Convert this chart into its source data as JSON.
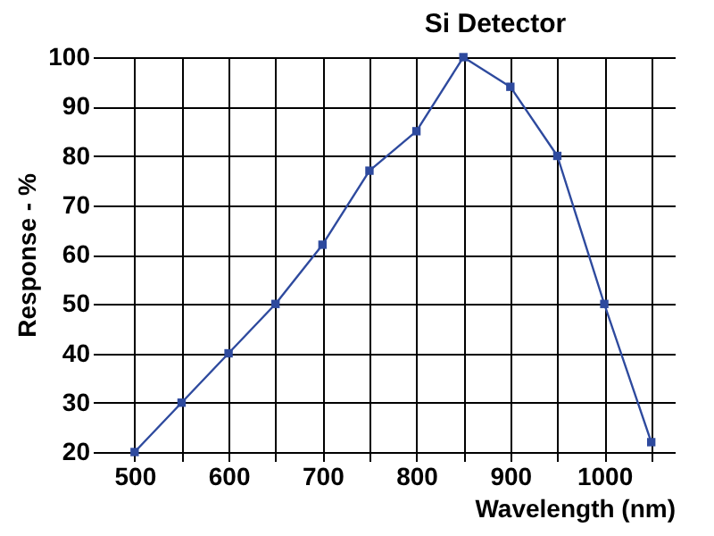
{
  "chart_data": {
    "type": "line",
    "title": "Si Detector",
    "xlabel": "Wavelength (nm)",
    "ylabel": "Response - %",
    "x": [
      500,
      550,
      600,
      650,
      700,
      750,
      800,
      850,
      900,
      950,
      1000,
      1050
    ],
    "series": [
      {
        "color": "#2e4a9e",
        "values": [
          20,
          30,
          40,
          50,
          62,
          77,
          85,
          100,
          94,
          80,
          50,
          22
        ]
      }
    ],
    "xlim": [
      465,
      1075
    ],
    "xticks": [
      500,
      {
        "value": 550,
        "label": null
      },
      600,
      {
        "value": 650,
        "label": null
      },
      700,
      {
        "value": 750,
        "label": null
      },
      800,
      {
        "value": 850,
        "label": null
      },
      900,
      {
        "value": 950,
        "label": null
      },
      1000,
      {
        "value": 1050,
        "label": null
      }
    ],
    "ylim": [
      20,
      100
    ],
    "yticks": [
      20,
      30,
      40,
      50,
      60,
      70,
      80,
      90,
      100
    ],
    "grid": true,
    "marker": "square",
    "line_style": "solid",
    "legend": false
  }
}
